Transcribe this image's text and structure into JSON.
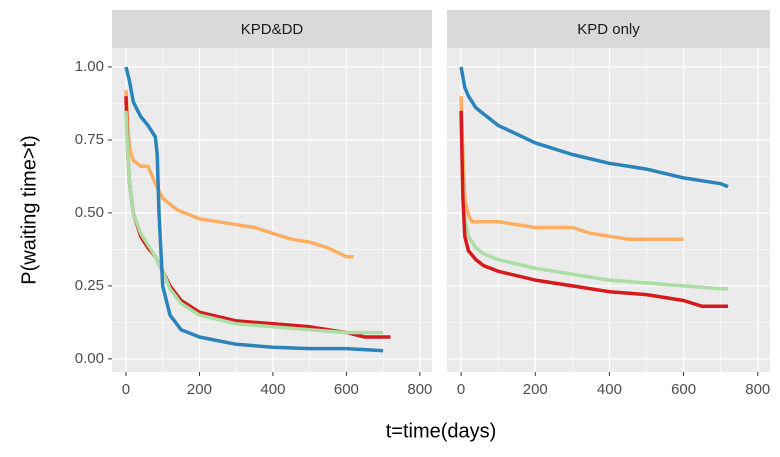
{
  "y_label": "P(waiting time>t)",
  "x_label": "t=time(days)",
  "chart_data": [
    {
      "type": "line",
      "title": "KPD&DD",
      "xlim": [
        -38,
        833
      ],
      "ylim": [
        -0.045,
        1.065
      ],
      "xticks": [
        0,
        200,
        400,
        600,
        800
      ],
      "yticks": [
        {
          "value": 0,
          "label": "0.00"
        },
        {
          "value": 0.25,
          "label": "0.25"
        },
        {
          "value": 0.5,
          "label": "0.50"
        },
        {
          "value": 0.75,
          "label": "0.75"
        },
        {
          "value": 1,
          "label": "1.00"
        }
      ],
      "grid": true,
      "series": [
        {
          "color": "#fdae61",
          "x": [
            0,
            5,
            10,
            20,
            30,
            40,
            60,
            80,
            100,
            120,
            140,
            160,
            200,
            250,
            300,
            350,
            400,
            450,
            500,
            550,
            600,
            620
          ],
          "values": [
            0.92,
            0.8,
            0.72,
            0.68,
            0.67,
            0.66,
            0.66,
            0.6,
            0.55,
            0.53,
            0.51,
            0.5,
            0.48,
            0.47,
            0.46,
            0.45,
            0.43,
            0.41,
            0.4,
            0.38,
            0.35,
            0.35
          ]
        },
        {
          "color": "#d7191c",
          "x": [
            0,
            5,
            10,
            20,
            40,
            60,
            80,
            100,
            120,
            150,
            200,
            300,
            400,
            500,
            600,
            650,
            720
          ],
          "values": [
            0.9,
            0.7,
            0.6,
            0.5,
            0.42,
            0.38,
            0.35,
            0.3,
            0.25,
            0.2,
            0.16,
            0.13,
            0.12,
            0.11,
            0.09,
            0.075,
            0.075
          ]
        },
        {
          "color": "#abdda4",
          "x": [
            0,
            5,
            10,
            20,
            40,
            60,
            80,
            100,
            120,
            150,
            200,
            300,
            400,
            500,
            600,
            700
          ],
          "values": [
            0.85,
            0.7,
            0.6,
            0.5,
            0.43,
            0.39,
            0.35,
            0.3,
            0.24,
            0.19,
            0.15,
            0.12,
            0.11,
            0.1,
            0.09,
            0.09
          ]
        },
        {
          "color": "#2b83ba",
          "x": [
            0,
            10,
            20,
            40,
            60,
            80,
            85,
            90,
            100,
            120,
            150,
            200,
            300,
            400,
            500,
            600,
            700
          ],
          "values": [
            1.0,
            0.95,
            0.88,
            0.83,
            0.8,
            0.76,
            0.7,
            0.5,
            0.25,
            0.15,
            0.1,
            0.075,
            0.05,
            0.04,
            0.035,
            0.035,
            0.028
          ]
        }
      ]
    },
    {
      "type": "line",
      "title": "KPD only",
      "xlim": [
        -38,
        833
      ],
      "ylim": [
        -0.045,
        1.065
      ],
      "xticks": [
        0,
        200,
        400,
        600,
        800
      ],
      "yticks": [
        0,
        0.25,
        0.5,
        0.75,
        1
      ],
      "grid": true,
      "series": [
        {
          "color": "#fdae61",
          "x": [
            0,
            5,
            10,
            20,
            30,
            50,
            100,
            150,
            200,
            300,
            350,
            400,
            450,
            500,
            550,
            600
          ],
          "values": [
            0.9,
            0.7,
            0.55,
            0.49,
            0.47,
            0.47,
            0.47,
            0.46,
            0.45,
            0.45,
            0.43,
            0.42,
            0.41,
            0.41,
            0.41,
            0.41
          ]
        },
        {
          "color": "#abdda4",
          "x": [
            0,
            5,
            10,
            20,
            40,
            60,
            100,
            200,
            300,
            400,
            500,
            600,
            700,
            720
          ],
          "values": [
            0.85,
            0.6,
            0.48,
            0.42,
            0.38,
            0.36,
            0.34,
            0.31,
            0.29,
            0.27,
            0.26,
            0.25,
            0.24,
            0.24
          ]
        },
        {
          "color": "#d7191c",
          "x": [
            0,
            5,
            10,
            20,
            40,
            60,
            100,
            200,
            300,
            400,
            500,
            600,
            650,
            720
          ],
          "values": [
            0.85,
            0.55,
            0.42,
            0.37,
            0.34,
            0.32,
            0.3,
            0.27,
            0.25,
            0.23,
            0.22,
            0.2,
            0.18,
            0.18
          ]
        },
        {
          "color": "#2b83ba",
          "x": [
            0,
            10,
            20,
            40,
            60,
            100,
            150,
            200,
            300,
            400,
            500,
            600,
            700,
            720
          ],
          "values": [
            1.0,
            0.93,
            0.9,
            0.86,
            0.84,
            0.8,
            0.77,
            0.74,
            0.7,
            0.67,
            0.65,
            0.62,
            0.6,
            0.59
          ]
        }
      ]
    }
  ]
}
